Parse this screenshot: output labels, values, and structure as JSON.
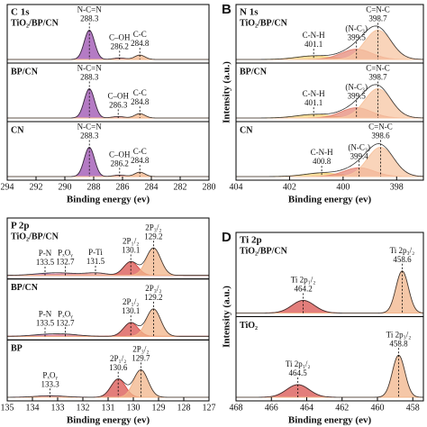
{
  "chart_data": [
    {
      "type": "xps",
      "title": "C 1s",
      "xlabel": "Binding energy (ev)",
      "xlim": [
        294,
        280
      ],
      "xticks": [
        294,
        292,
        290,
        288,
        286,
        284,
        282,
        280
      ],
      "subplots": [
        {
          "sample": "TiO₂/BP/CN",
          "peaks": [
            {
              "label": "N-C=N",
              "value": 288.3,
              "height": 1.0,
              "width": 0.5,
              "color": "#9b4fb0"
            },
            {
              "label": "C–OH",
              "value": 286.2,
              "height": 0.05,
              "width": 0.6,
              "color": "#d98ca0"
            },
            {
              "label": "C-C",
              "value": 284.8,
              "height": 0.15,
              "width": 0.5,
              "color": "#f2b48a"
            }
          ]
        },
        {
          "sample": "BP/CN",
          "peaks": [
            {
              "label": "N-C=N",
              "value": 288.3,
              "height": 1.0,
              "width": 0.5,
              "color": "#9b4fb0"
            },
            {
              "label": "C–OH",
              "value": 286.3,
              "height": 0.05,
              "width": 0.6,
              "color": "#d98ca0"
            },
            {
              "label": "C-C",
              "value": 284.8,
              "height": 0.15,
              "width": 0.5,
              "color": "#f2b48a"
            }
          ]
        },
        {
          "sample": "CN",
          "peaks": [
            {
              "label": "N-C=N",
              "value": 288.3,
              "height": 1.0,
              "width": 0.5,
              "color": "#9b4fb0"
            },
            {
              "label": "C–OH",
              "value": 286.2,
              "height": 0.05,
              "width": 0.6,
              "color": "#d98ca0"
            },
            {
              "label": "C-C",
              "value": 284.8,
              "height": 0.15,
              "width": 0.5,
              "color": "#f2b48a"
            }
          ]
        }
      ]
    },
    {
      "type": "xps",
      "panel": "B",
      "title": "N 1s",
      "xlabel": "Binding energy (ev)",
      "ylabel": "Intensity (a.u.)",
      "xlim": [
        404,
        397
      ],
      "xticks": [
        404,
        402,
        400,
        398
      ],
      "subplots": [
        {
          "sample": "TiO₂/BP/CN",
          "peaks": [
            {
              "label": "C-N-H",
              "value": 401.1,
              "height": 0.12,
              "width": 0.9,
              "color": "#f3d27a"
            },
            {
              "label": "(N-C₃)",
              "value": 399.5,
              "height": 0.35,
              "width": 0.8,
              "color": "#e58a7a"
            },
            {
              "label": "C=N-C",
              "value": 398.7,
              "height": 1.0,
              "width": 0.7,
              "color": "#f7c6a3"
            }
          ]
        },
        {
          "sample": "BP/CN",
          "peaks": [
            {
              "label": "C-N-H",
              "value": 401.1,
              "height": 0.12,
              "width": 0.9,
              "color": "#f3d27a"
            },
            {
              "label": "(N-C₃)",
              "value": 399.5,
              "height": 0.35,
              "width": 0.8,
              "color": "#e58a7a"
            },
            {
              "label": "C=N-C",
              "value": 398.7,
              "height": 1.0,
              "width": 0.7,
              "color": "#f7c6a3"
            }
          ]
        },
        {
          "sample": "CN",
          "peaks": [
            {
              "label": "C-N-H",
              "value": 400.8,
              "height": 0.12,
              "width": 0.9,
              "color": "#f3d27a"
            },
            {
              "label": "(N-C₃)",
              "value": 399.4,
              "height": 0.3,
              "width": 0.8,
              "color": "#e58a7a"
            },
            {
              "label": "C=N-C",
              "value": 398.6,
              "height": 1.0,
              "width": 0.7,
              "color": "#f7c6a3"
            }
          ]
        }
      ]
    },
    {
      "type": "xps",
      "title": "P 2p",
      "xlabel": "Binding energy (ev)",
      "xlim": [
        135,
        127
      ],
      "xticks": [
        135,
        134,
        133,
        132,
        131,
        130,
        129,
        128,
        127
      ],
      "subplots": [
        {
          "sample": "TiO₂/BP/CN",
          "peaks": [
            {
              "label": "P-N",
              "value": 133.5,
              "height": 0.05,
              "width": 0.8,
              "color": "#b58ac9"
            },
            {
              "label": "PₓOᵧ",
              "value": 132.7,
              "height": 0.06,
              "width": 0.8,
              "color": "#d98ca0"
            },
            {
              "label": "P-Ti",
              "value": 131.5,
              "height": 0.08,
              "width": 0.6,
              "color": "#e8a0a0"
            },
            {
              "label": "2P₁/₂",
              "value": 130.1,
              "height": 0.45,
              "width": 0.4,
              "color": "#d9534f"
            },
            {
              "label": "2P₃/₂",
              "value": 129.2,
              "height": 0.9,
              "width": 0.4,
              "color": "#f2b48a"
            }
          ]
        },
        {
          "sample": "BP/CN",
          "peaks": [
            {
              "label": "P-N",
              "value": 133.5,
              "height": 0.05,
              "width": 0.8,
              "color": "#b58ac9"
            },
            {
              "label": "PₓOᵧ",
              "value": 132.7,
              "height": 0.06,
              "width": 0.8,
              "color": "#d98ca0"
            },
            {
              "label": "2P₁/₂",
              "value": 130.1,
              "height": 0.45,
              "width": 0.4,
              "color": "#d9534f"
            },
            {
              "label": "2P₃/₂",
              "value": 129.2,
              "height": 0.9,
              "width": 0.4,
              "color": "#f2b48a"
            }
          ]
        },
        {
          "sample": "BP",
          "peaks": [
            {
              "label": "PₓOᵧ",
              "value": 133.3,
              "height": 0.05,
              "width": 0.8,
              "color": "#d98ca0"
            },
            {
              "label": "2P₁/₂",
              "value": 130.6,
              "height": 0.6,
              "width": 0.4,
              "color": "#d9534f"
            },
            {
              "label": "2P₃/₂",
              "value": 129.7,
              "height": 0.9,
              "width": 0.4,
              "color": "#f2b48a"
            }
          ]
        }
      ]
    },
    {
      "type": "xps",
      "panel": "D",
      "title": "Ti 2p",
      "xlabel": "Binding energy (ev)",
      "ylabel": "Intensity (a.u.)",
      "xlim": [
        468,
        457.4
      ],
      "xticks": [
        468,
        466,
        464,
        462,
        460,
        458
      ],
      "subplots": [
        {
          "sample": "TiO₂/BP/CN",
          "peaks": [
            {
              "label": "Ti 2p₁/₂",
              "value": 464.2,
              "height": 0.3,
              "width": 0.9,
              "color": "#d9534f"
            },
            {
              "label": "Ti 2p₃/₂",
              "value": 458.6,
              "height": 1.0,
              "width": 0.5,
              "color": "#f2b48a"
            }
          ]
        },
        {
          "sample": "TiO₂",
          "peaks": [
            {
              "label": "Ti 2p₁/₂",
              "value": 464.5,
              "height": 0.3,
              "width": 0.9,
              "color": "#d9534f"
            },
            {
              "label": "Ti 2p₃/₂",
              "value": 458.8,
              "height": 1.0,
              "width": 0.5,
              "color": "#f2b48a"
            }
          ]
        }
      ]
    }
  ]
}
